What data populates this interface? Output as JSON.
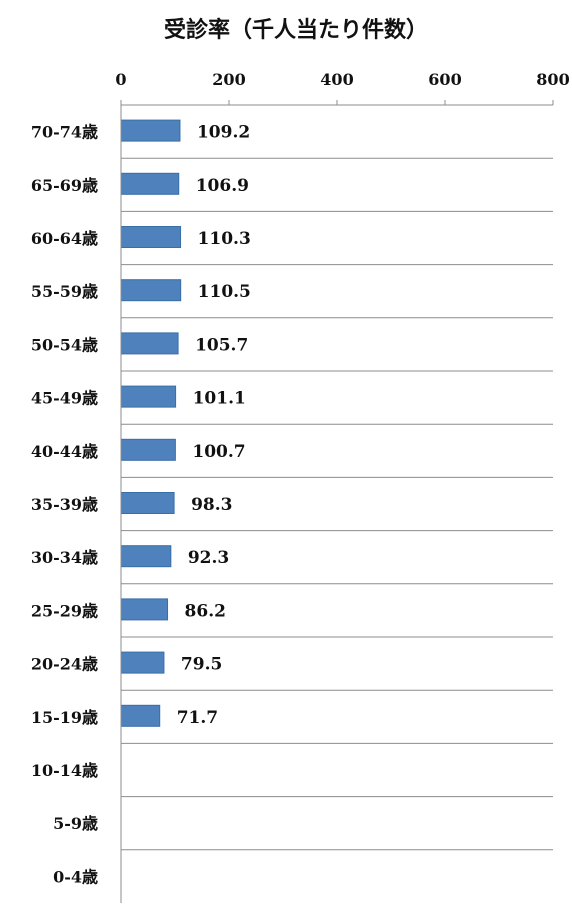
{
  "chart_data": {
    "type": "bar",
    "orientation": "horizontal",
    "title": "受診率（千人当たり件数）",
    "xlabel": "",
    "ylabel": "",
    "xlim": [
      0,
      800
    ],
    "x_ticks": [
      "0",
      "200",
      "400",
      "600",
      "800"
    ],
    "x_tick_values": [
      0,
      200,
      400,
      600,
      800
    ],
    "x_axis_position": "top",
    "grid": true,
    "categories": [
      "70-74歳",
      "65-69歳",
      "60-64歳",
      "55-59歳",
      "50-54歳",
      "45-49歳",
      "40-44歳",
      "35-39歳",
      "30-34歳",
      "25-29歳",
      "20-24歳",
      "15-19歳",
      "10-14歳",
      "5-9歳",
      "0-4歳"
    ],
    "values": [
      109.2,
      106.9,
      110.3,
      110.5,
      105.7,
      101.1,
      100.7,
      98.3,
      92.3,
      86.2,
      79.5,
      71.7,
      null,
      null,
      null
    ],
    "value_labels": [
      "109.2",
      "106.9",
      "110.3",
      "110.5",
      "105.7",
      "101.1",
      "100.7",
      "98.3",
      "92.3",
      "86.2",
      "79.5",
      "71.7",
      "",
      "",
      ""
    ],
    "bar_color": "#4f81bd",
    "bar_border_color": "#3a6ea8",
    "legend": "none"
  }
}
